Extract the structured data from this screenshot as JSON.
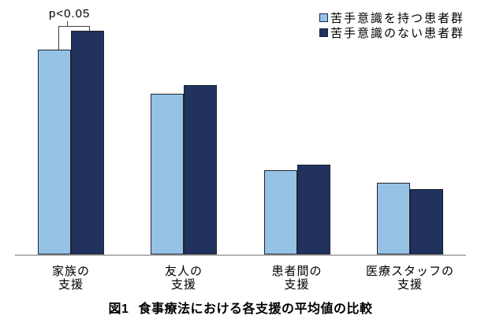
{
  "chart_data": {
    "type": "bar",
    "title": "図1 食事療法における各支援の平均値の比較",
    "categories": [
      "家族の支援",
      "友人の支援",
      "患者間の支援",
      "医療スタッフの支援"
    ],
    "category_lines": [
      [
        "家族の",
        "支援"
      ],
      [
        "友人の",
        "支援"
      ],
      [
        "患者間の",
        "支援"
      ],
      [
        "医療スタッフの",
        "支援"
      ]
    ],
    "series": [
      {
        "name": "苦手意識を持つ患者群",
        "color": "#95C2E5",
        "values": [
          260,
          204,
          107,
          91
        ]
      },
      {
        "name": "苦手意識のない患者群",
        "color": "#21325F",
        "values": [
          284,
          215,
          114,
          83
        ]
      }
    ],
    "unit": "relative bar height in px (no value axis shown in figure)",
    "ylim": [
      0,
      310
    ],
    "grid": false,
    "legend_position": "top-right",
    "annotation": {
      "text": "p<0.05",
      "target_category": "家族の支援"
    },
    "bar_outline_color": "#1f2430",
    "axis_line_color": "#b3b3b3"
  },
  "legend": {
    "items": [
      {
        "label": "苦手意識を持つ患者群"
      },
      {
        "label": "苦手意識のない患者群"
      }
    ]
  },
  "annotation": {
    "p_text": "p<0.05"
  },
  "caption": {
    "figure_label": "図1",
    "title": "食事療法における各支援の平均値の比較"
  }
}
